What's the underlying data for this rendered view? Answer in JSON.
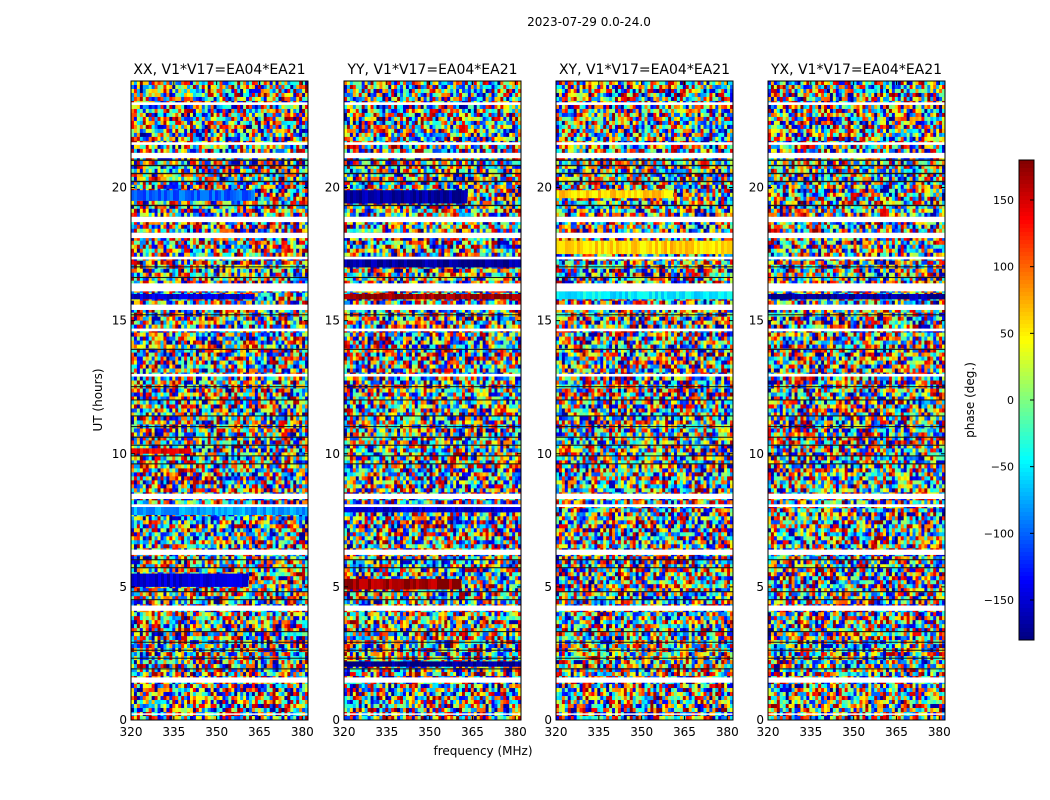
{
  "figure": {
    "suptitle": "2023-07-29 0.0-24.0",
    "ylabel": "UT (hours)",
    "xlabel": "frequency (MHz)",
    "colorbar_label": "phase (deg.)"
  },
  "chart_data": {
    "type": "heatmap",
    "title": "2023-07-29 0.0-24.0",
    "xlabel": "frequency (MHz)",
    "ylabel": "UT (hours)",
    "xlim": [
      320,
      382
    ],
    "ylim": [
      0,
      24
    ],
    "xticks": [
      320,
      335,
      350,
      365,
      380
    ],
    "yticks": [
      0,
      5,
      10,
      15,
      20
    ],
    "colorbar": {
      "label": "phase (deg.)",
      "range": [
        -180,
        180
      ],
      "ticks": [
        150,
        100,
        50,
        0,
        -50,
        -100,
        -150
      ],
      "colormap": "jet"
    },
    "panels": [
      {
        "title": "XX, V1*V17=EA04*EA21",
        "bands": [
          {
            "ut": [
              19.5,
              19.9
            ],
            "phase": -100,
            "freq_to": 363
          },
          {
            "ut": [
              15.8,
              16.0
            ],
            "phase": -150,
            "freq_to": 363
          },
          {
            "ut": [
              5.0,
              5.5
            ],
            "phase": -150,
            "freq_to": 360
          },
          {
            "ut": [
              7.7,
              8.0
            ],
            "phase": -80,
            "freq_to": 382
          },
          {
            "ut": [
              10.0,
              10.2
            ],
            "phase": 140,
            "freq_to": 340
          }
        ]
      },
      {
        "title": "YY, V1*V17=EA04*EA21",
        "bands": [
          {
            "ut": [
              19.4,
              19.9
            ],
            "phase": -170,
            "freq_to": 363
          },
          {
            "ut": [
              17.0,
              17.4
            ],
            "phase": -170,
            "freq_to": 382
          },
          {
            "ut": [
              15.8,
              16.0
            ],
            "phase": 170,
            "freq_to": 382
          },
          {
            "ut": [
              4.9,
              5.3
            ],
            "phase": 170,
            "freq_to": 360
          },
          {
            "ut": [
              7.8,
              8.1
            ],
            "phase": -150,
            "freq_to": 382
          },
          {
            "ut": [
              2.0,
              2.2
            ],
            "phase": -175,
            "freq_to": 382
          }
        ]
      },
      {
        "title": "XY, V1*V17=EA04*EA21",
        "bands": [
          {
            "ut": [
              19.6,
              19.9
            ],
            "phase": 60,
            "freq_to": 360
          },
          {
            "ut": [
              15.8,
              16.1
            ],
            "phase": -50,
            "freq_to": 382
          },
          {
            "ut": [
              17.5,
              18.0
            ],
            "phase": 60,
            "freq_to": 382
          }
        ]
      },
      {
        "title": "YX, V1*V17=EA04*EA21",
        "bands": [
          {
            "ut": [
              15.8,
              16.0
            ],
            "phase": -170,
            "freq_to": 382
          }
        ]
      }
    ],
    "gaps_ut": [
      [
        23.1,
        23.2
      ],
      [
        21.6,
        21.7
      ],
      [
        21.1,
        21.3
      ],
      [
        18.7,
        18.9
      ],
      [
        18.1,
        18.3
      ],
      [
        17.3,
        17.4
      ],
      [
        16.1,
        16.4
      ],
      [
        15.4,
        15.6
      ],
      [
        14.6,
        14.7
      ],
      [
        12.9,
        13.0
      ],
      [
        8.3,
        8.5
      ],
      [
        8.0,
        8.1
      ],
      [
        6.2,
        6.4
      ],
      [
        4.1,
        4.3
      ],
      [
        1.4,
        1.6
      ],
      [
        0.2,
        0.25
      ]
    ],
    "dark_rows_ut": [
      [
        21.0,
        21.05
      ],
      [
        20.8,
        20.85
      ],
      [
        20.5,
        20.55
      ],
      [
        20.2,
        20.25
      ],
      [
        19.3,
        19.35
      ],
      [
        17.0,
        17.04
      ],
      [
        16.6,
        16.64
      ],
      [
        15.2,
        15.24
      ],
      [
        13.9,
        13.94
      ],
      [
        12.5,
        12.54
      ],
      [
        12.0,
        12.04
      ],
      [
        11.4,
        11.44
      ],
      [
        11.0,
        11.04
      ],
      [
        10.6,
        10.64
      ],
      [
        10.3,
        10.34
      ],
      [
        9.9,
        9.94
      ],
      [
        9.6,
        9.64
      ],
      [
        6.0,
        6.04
      ],
      [
        5.7,
        5.74
      ],
      [
        4.8,
        4.84
      ],
      [
        4.5,
        4.54
      ],
      [
        3.3,
        3.34
      ],
      [
        2.9,
        2.94
      ],
      [
        2.6,
        2.64
      ],
      [
        2.3,
        2.34
      ],
      [
        1.9,
        1.94
      ]
    ]
  }
}
